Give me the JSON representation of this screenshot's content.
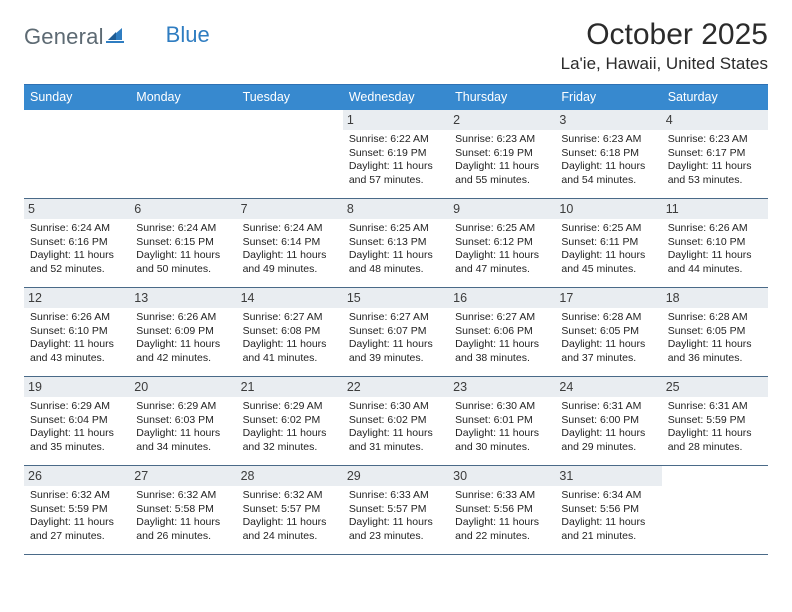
{
  "logo": {
    "word1": "General",
    "word2": "Blue"
  },
  "title": "October 2025",
  "location": "La'ie, Hawaii, United States",
  "style": {
    "header_bg": "#3789cf",
    "header_border": "#2f71b3",
    "week_border": "#4a6a88",
    "daynum_bg": "#e9edf1",
    "page_bg": "#ffffff",
    "text_color": "#232323",
    "title_fontsize": 30,
    "location_fontsize": 17,
    "dayhead_fontsize": 12.5,
    "daynum_fontsize": 12.5,
    "info_fontsize": 10.5,
    "columns": 7
  },
  "dayheads": [
    "Sunday",
    "Monday",
    "Tuesday",
    "Wednesday",
    "Thursday",
    "Friday",
    "Saturday"
  ],
  "weeks": [
    [
      {
        "n": "",
        "sr": "",
        "ss": "",
        "dl1": "",
        "dl2": ""
      },
      {
        "n": "",
        "sr": "",
        "ss": "",
        "dl1": "",
        "dl2": ""
      },
      {
        "n": "",
        "sr": "",
        "ss": "",
        "dl1": "",
        "dl2": ""
      },
      {
        "n": "1",
        "sr": "Sunrise: 6:22 AM",
        "ss": "Sunset: 6:19 PM",
        "dl1": "Daylight: 11 hours",
        "dl2": "and 57 minutes."
      },
      {
        "n": "2",
        "sr": "Sunrise: 6:23 AM",
        "ss": "Sunset: 6:19 PM",
        "dl1": "Daylight: 11 hours",
        "dl2": "and 55 minutes."
      },
      {
        "n": "3",
        "sr": "Sunrise: 6:23 AM",
        "ss": "Sunset: 6:18 PM",
        "dl1": "Daylight: 11 hours",
        "dl2": "and 54 minutes."
      },
      {
        "n": "4",
        "sr": "Sunrise: 6:23 AM",
        "ss": "Sunset: 6:17 PM",
        "dl1": "Daylight: 11 hours",
        "dl2": "and 53 minutes."
      }
    ],
    [
      {
        "n": "5",
        "sr": "Sunrise: 6:24 AM",
        "ss": "Sunset: 6:16 PM",
        "dl1": "Daylight: 11 hours",
        "dl2": "and 52 minutes."
      },
      {
        "n": "6",
        "sr": "Sunrise: 6:24 AM",
        "ss": "Sunset: 6:15 PM",
        "dl1": "Daylight: 11 hours",
        "dl2": "and 50 minutes."
      },
      {
        "n": "7",
        "sr": "Sunrise: 6:24 AM",
        "ss": "Sunset: 6:14 PM",
        "dl1": "Daylight: 11 hours",
        "dl2": "and 49 minutes."
      },
      {
        "n": "8",
        "sr": "Sunrise: 6:25 AM",
        "ss": "Sunset: 6:13 PM",
        "dl1": "Daylight: 11 hours",
        "dl2": "and 48 minutes."
      },
      {
        "n": "9",
        "sr": "Sunrise: 6:25 AM",
        "ss": "Sunset: 6:12 PM",
        "dl1": "Daylight: 11 hours",
        "dl2": "and 47 minutes."
      },
      {
        "n": "10",
        "sr": "Sunrise: 6:25 AM",
        "ss": "Sunset: 6:11 PM",
        "dl1": "Daylight: 11 hours",
        "dl2": "and 45 minutes."
      },
      {
        "n": "11",
        "sr": "Sunrise: 6:26 AM",
        "ss": "Sunset: 6:10 PM",
        "dl1": "Daylight: 11 hours",
        "dl2": "and 44 minutes."
      }
    ],
    [
      {
        "n": "12",
        "sr": "Sunrise: 6:26 AM",
        "ss": "Sunset: 6:10 PM",
        "dl1": "Daylight: 11 hours",
        "dl2": "and 43 minutes."
      },
      {
        "n": "13",
        "sr": "Sunrise: 6:26 AM",
        "ss": "Sunset: 6:09 PM",
        "dl1": "Daylight: 11 hours",
        "dl2": "and 42 minutes."
      },
      {
        "n": "14",
        "sr": "Sunrise: 6:27 AM",
        "ss": "Sunset: 6:08 PM",
        "dl1": "Daylight: 11 hours",
        "dl2": "and 41 minutes."
      },
      {
        "n": "15",
        "sr": "Sunrise: 6:27 AM",
        "ss": "Sunset: 6:07 PM",
        "dl1": "Daylight: 11 hours",
        "dl2": "and 39 minutes."
      },
      {
        "n": "16",
        "sr": "Sunrise: 6:27 AM",
        "ss": "Sunset: 6:06 PM",
        "dl1": "Daylight: 11 hours",
        "dl2": "and 38 minutes."
      },
      {
        "n": "17",
        "sr": "Sunrise: 6:28 AM",
        "ss": "Sunset: 6:05 PM",
        "dl1": "Daylight: 11 hours",
        "dl2": "and 37 minutes."
      },
      {
        "n": "18",
        "sr": "Sunrise: 6:28 AM",
        "ss": "Sunset: 6:05 PM",
        "dl1": "Daylight: 11 hours",
        "dl2": "and 36 minutes."
      }
    ],
    [
      {
        "n": "19",
        "sr": "Sunrise: 6:29 AM",
        "ss": "Sunset: 6:04 PM",
        "dl1": "Daylight: 11 hours",
        "dl2": "and 35 minutes."
      },
      {
        "n": "20",
        "sr": "Sunrise: 6:29 AM",
        "ss": "Sunset: 6:03 PM",
        "dl1": "Daylight: 11 hours",
        "dl2": "and 34 minutes."
      },
      {
        "n": "21",
        "sr": "Sunrise: 6:29 AM",
        "ss": "Sunset: 6:02 PM",
        "dl1": "Daylight: 11 hours",
        "dl2": "and 32 minutes."
      },
      {
        "n": "22",
        "sr": "Sunrise: 6:30 AM",
        "ss": "Sunset: 6:02 PM",
        "dl1": "Daylight: 11 hours",
        "dl2": "and 31 minutes."
      },
      {
        "n": "23",
        "sr": "Sunrise: 6:30 AM",
        "ss": "Sunset: 6:01 PM",
        "dl1": "Daylight: 11 hours",
        "dl2": "and 30 minutes."
      },
      {
        "n": "24",
        "sr": "Sunrise: 6:31 AM",
        "ss": "Sunset: 6:00 PM",
        "dl1": "Daylight: 11 hours",
        "dl2": "and 29 minutes."
      },
      {
        "n": "25",
        "sr": "Sunrise: 6:31 AM",
        "ss": "Sunset: 5:59 PM",
        "dl1": "Daylight: 11 hours",
        "dl2": "and 28 minutes."
      }
    ],
    [
      {
        "n": "26",
        "sr": "Sunrise: 6:32 AM",
        "ss": "Sunset: 5:59 PM",
        "dl1": "Daylight: 11 hours",
        "dl2": "and 27 minutes."
      },
      {
        "n": "27",
        "sr": "Sunrise: 6:32 AM",
        "ss": "Sunset: 5:58 PM",
        "dl1": "Daylight: 11 hours",
        "dl2": "and 26 minutes."
      },
      {
        "n": "28",
        "sr": "Sunrise: 6:32 AM",
        "ss": "Sunset: 5:57 PM",
        "dl1": "Daylight: 11 hours",
        "dl2": "and 24 minutes."
      },
      {
        "n": "29",
        "sr": "Sunrise: 6:33 AM",
        "ss": "Sunset: 5:57 PM",
        "dl1": "Daylight: 11 hours",
        "dl2": "and 23 minutes."
      },
      {
        "n": "30",
        "sr": "Sunrise: 6:33 AM",
        "ss": "Sunset: 5:56 PM",
        "dl1": "Daylight: 11 hours",
        "dl2": "and 22 minutes."
      },
      {
        "n": "31",
        "sr": "Sunrise: 6:34 AM",
        "ss": "Sunset: 5:56 PM",
        "dl1": "Daylight: 11 hours",
        "dl2": "and 21 minutes."
      },
      {
        "n": "",
        "sr": "",
        "ss": "",
        "dl1": "",
        "dl2": ""
      }
    ]
  ]
}
